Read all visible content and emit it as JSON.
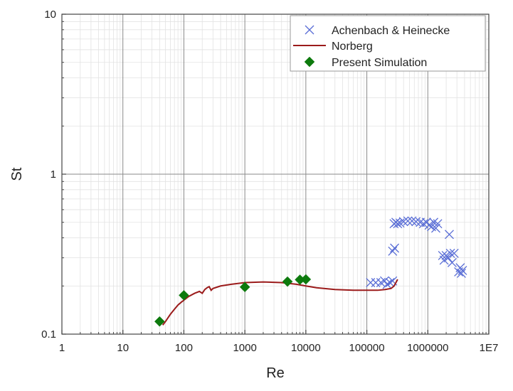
{
  "chart_data": {
    "type": "scatter",
    "xlabel": "Re",
    "ylabel": "St",
    "xscale": "log",
    "yscale": "log",
    "xlim": [
      1,
      10000000
    ],
    "ylim": [
      0.1,
      10
    ],
    "grid": true,
    "minor_grid": true,
    "legend_position": "top-right",
    "x_tick_labels": [
      "1",
      "10",
      "100",
      "1000",
      "10000",
      "100000",
      "1000000",
      "1E7"
    ],
    "y_tick_labels": [
      "0.1",
      "1",
      "10"
    ],
    "series": [
      {
        "name": "Achenbach & Heinecke",
        "type": "scatter",
        "marker": "x",
        "color": "#5b6fd6",
        "points": [
          [
            115000,
            0.21
          ],
          [
            140000,
            0.21
          ],
          [
            170000,
            0.21
          ],
          [
            195000,
            0.215
          ],
          [
            215000,
            0.205
          ],
          [
            240000,
            0.21
          ],
          [
            265000,
            0.215
          ],
          [
            265000,
            0.33
          ],
          [
            285000,
            0.345
          ],
          [
            280000,
            0.49
          ],
          [
            300000,
            0.5
          ],
          [
            320000,
            0.49
          ],
          [
            350000,
            0.495
          ],
          [
            400000,
            0.505
          ],
          [
            470000,
            0.51
          ],
          [
            550000,
            0.51
          ],
          [
            640000,
            0.505
          ],
          [
            750000,
            0.5
          ],
          [
            850000,
            0.49
          ],
          [
            950000,
            0.5
          ],
          [
            1050000,
            0.48
          ],
          [
            1150000,
            0.47
          ],
          [
            1250000,
            0.5
          ],
          [
            1350000,
            0.46
          ],
          [
            1450000,
            0.49
          ],
          [
            1750000,
            0.31
          ],
          [
            1850000,
            0.29
          ],
          [
            2000000,
            0.31
          ],
          [
            2150000,
            0.3
          ],
          [
            2250000,
            0.42
          ],
          [
            2350000,
            0.32
          ],
          [
            2500000,
            0.28
          ],
          [
            2700000,
            0.32
          ],
          [
            3200000,
            0.245
          ],
          [
            3400000,
            0.26
          ],
          [
            3550000,
            0.24
          ],
          [
            3700000,
            0.25
          ]
        ]
      },
      {
        "name": "Norberg",
        "type": "line",
        "color": "#9b1b1b",
        "points": [
          [
            45,
            0.114
          ],
          [
            50,
            0.12
          ],
          [
            60,
            0.133
          ],
          [
            70,
            0.143
          ],
          [
            80,
            0.152
          ],
          [
            90,
            0.158
          ],
          [
            100,
            0.163
          ],
          [
            120,
            0.172
          ],
          [
            150,
            0.18
          ],
          [
            180,
            0.185
          ],
          [
            200,
            0.18
          ],
          [
            220,
            0.19
          ],
          [
            240,
            0.195
          ],
          [
            260,
            0.198
          ],
          [
            280,
            0.188
          ],
          [
            300,
            0.193
          ],
          [
            400,
            0.2
          ],
          [
            600,
            0.205
          ],
          [
            1000,
            0.21
          ],
          [
            2000,
            0.212
          ],
          [
            4000,
            0.21
          ],
          [
            7000,
            0.205
          ],
          [
            10000,
            0.2
          ],
          [
            15000,
            0.195
          ],
          [
            30000,
            0.19
          ],
          [
            60000,
            0.188
          ],
          [
            100000,
            0.188
          ],
          [
            150000,
            0.188
          ],
          [
            200000,
            0.19
          ],
          [
            250000,
            0.193
          ],
          [
            280000,
            0.2
          ],
          [
            300000,
            0.21
          ],
          [
            320000,
            0.22
          ]
        ]
      },
      {
        "name": "Present Simulation",
        "type": "scatter",
        "marker": "diamond",
        "color": "#0d7a0d",
        "points": [
          [
            40,
            0.12
          ],
          [
            100,
            0.175
          ],
          [
            1000,
            0.197
          ],
          [
            5000,
            0.213
          ],
          [
            8000,
            0.219
          ],
          [
            10000,
            0.22
          ]
        ]
      }
    ]
  }
}
